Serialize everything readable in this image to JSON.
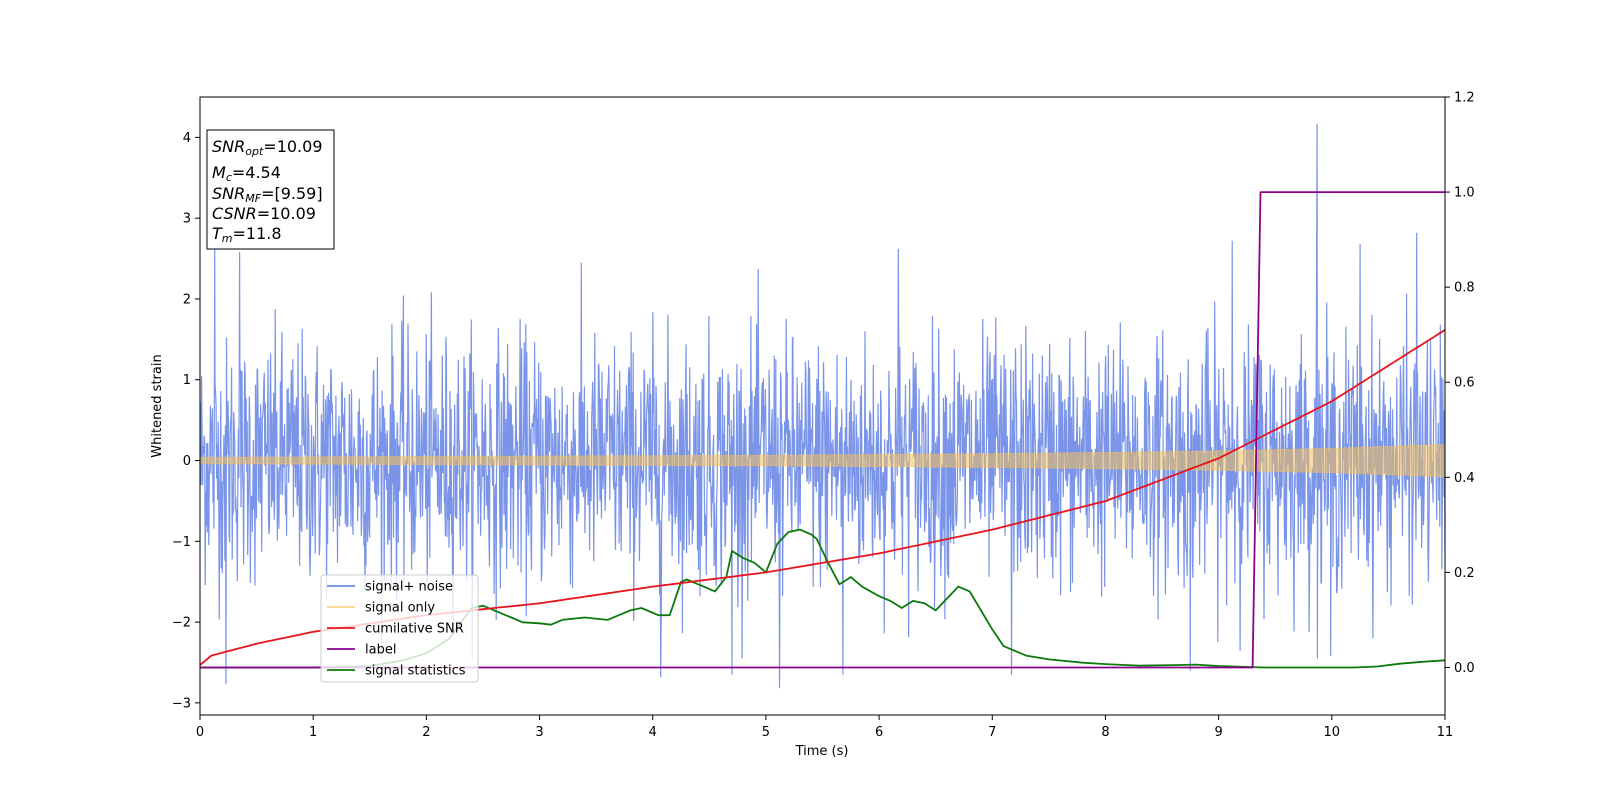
{
  "chart_data": {
    "type": "line",
    "xlabel": "Time (s)",
    "ylabel": "Whitened strain",
    "xlim": [
      0,
      11
    ],
    "ylim": [
      -3.15,
      4.5
    ],
    "y2lim": [
      -0.1,
      1.2
    ],
    "xticks": [
      "0",
      "1",
      "2",
      "3",
      "4",
      "5",
      "6",
      "7",
      "8",
      "9",
      "10",
      "11"
    ],
    "yticks": [
      "−3",
      "−2",
      "−1",
      "0",
      "1",
      "2",
      "3",
      "4"
    ],
    "y2ticks": [
      "0.0",
      "0.2",
      "0.4",
      "0.6",
      "0.8",
      "1.0",
      "1.2"
    ],
    "legend_position": "lower-left",
    "colors": {
      "signal_noise": "#6a88e6",
      "signal_only": "#f5c05a",
      "cumulative_snr": "#e8141c",
      "label": "#8b008b",
      "signal_statistics": "#0b7a0b"
    },
    "info_box": {
      "snr_opt": {
        "var": "SNR",
        "sub": "opt",
        "value": "=10.09"
      },
      "mc": {
        "var": "M",
        "sub": "c",
        "value": "=4.54"
      },
      "snr_mf": {
        "var": "SNR",
        "sub": "MF",
        "value": "=[9.59]"
      },
      "csnr": {
        "var": "CSNR",
        "sub": "",
        "value": "=10.09"
      },
      "tm": {
        "var": "T",
        "sub": "m",
        "value": "=11.8"
      }
    },
    "series": [
      {
        "name": "signal+ noise",
        "axis": "left",
        "kind": "noise-band",
        "std": 0.75,
        "typical_range": [
          -2.0,
          2.0
        ],
        "spikes": [
          {
            "x": 9.87,
            "y": 4.17
          },
          {
            "x": 0.13,
            "y": 2.7
          },
          {
            "x": 0.35,
            "y": 2.58
          },
          {
            "x": 5.12,
            "y": -2.82
          },
          {
            "x": 0.23,
            "y": -2.77
          },
          {
            "x": 4.07,
            "y": -2.68
          },
          {
            "x": 4.7,
            "y": -2.65
          },
          {
            "x": 5.68,
            "y": -2.65
          },
          {
            "x": 7.17,
            "y": -2.65
          },
          {
            "x": 8.75,
            "y": -2.6
          },
          {
            "x": 9.99,
            "y": -2.42
          },
          {
            "x": 9.12,
            "y": 2.72
          },
          {
            "x": 10.75,
            "y": 2.82
          },
          {
            "x": 10.25,
            "y": 2.68
          },
          {
            "x": 6.17,
            "y": 2.62
          }
        ]
      },
      {
        "name": "signal only",
        "axis": "left",
        "kind": "envelope",
        "x": [
          0,
          1,
          2,
          3,
          4,
          5,
          6,
          7,
          8,
          9,
          10,
          11
        ],
        "envelope": [
          0.04,
          0.045,
          0.05,
          0.055,
          0.06,
          0.065,
          0.075,
          0.085,
          0.1,
          0.12,
          0.15,
          0.2
        ]
      },
      {
        "name": "cumilative SNR",
        "axis": "right",
        "x": [
          0,
          0.1,
          0.5,
          1,
          2,
          3,
          4,
          5,
          6,
          7,
          8,
          9,
          10,
          11
        ],
        "values": [
          0.005,
          0.025,
          0.05,
          0.075,
          0.11,
          0.135,
          0.17,
          0.2,
          0.24,
          0.29,
          0.35,
          0.44,
          0.56,
          0.71
        ]
      },
      {
        "name": "label",
        "axis": "right",
        "x": [
          0,
          9.3,
          9.37,
          11
        ],
        "values": [
          0,
          0,
          1,
          1
        ]
      },
      {
        "name": "signal statistics",
        "axis": "right",
        "x": [
          0,
          0.5,
          1,
          1.5,
          1.8,
          2.0,
          2.2,
          2.4,
          2.5,
          2.6,
          2.75,
          2.85,
          3.0,
          3.1,
          3.2,
          3.4,
          3.6,
          3.8,
          3.9,
          4.05,
          4.15,
          4.25,
          4.3,
          4.45,
          4.55,
          4.65,
          4.7,
          4.8,
          4.9,
          5.0,
          5.1,
          5.2,
          5.3,
          5.4,
          5.45,
          5.55,
          5.65,
          5.75,
          5.85,
          6.0,
          6.1,
          6.2,
          6.3,
          6.4,
          6.5,
          6.6,
          6.7,
          6.8,
          6.9,
          7.0,
          7.1,
          7.3,
          7.5,
          7.8,
          8.0,
          8.3,
          8.6,
          8.8,
          9.0,
          9.4,
          9.8,
          10.2,
          10.4,
          10.6,
          10.8,
          11.0
        ],
        "values": [
          0.0,
          0.0,
          0.0,
          0.003,
          0.015,
          0.03,
          0.06,
          0.125,
          0.13,
          0.12,
          0.105,
          0.095,
          0.093,
          0.09,
          0.1,
          0.105,
          0.1,
          0.12,
          0.125,
          0.11,
          0.11,
          0.18,
          0.185,
          0.17,
          0.16,
          0.19,
          0.245,
          0.23,
          0.22,
          0.2,
          0.26,
          0.285,
          0.29,
          0.28,
          0.27,
          0.22,
          0.175,
          0.19,
          0.17,
          0.15,
          0.14,
          0.125,
          0.14,
          0.135,
          0.12,
          0.145,
          0.17,
          0.16,
          0.12,
          0.08,
          0.045,
          0.025,
          0.017,
          0.01,
          0.007,
          0.004,
          0.005,
          0.006,
          0.003,
          0.0,
          0.0,
          0.0,
          0.002,
          0.008,
          0.012,
          0.015
        ]
      }
    ],
    "legend": [
      {
        "label": "signal+ noise",
        "color": "#6a88e6"
      },
      {
        "label": "signal only",
        "color": "#f5c05a"
      },
      {
        "label": "cumilative SNR",
        "color": "#e8141c"
      },
      {
        "label": "label",
        "color": "#8b008b"
      },
      {
        "label": "signal statistics",
        "color": "#0b7a0b"
      }
    ]
  }
}
